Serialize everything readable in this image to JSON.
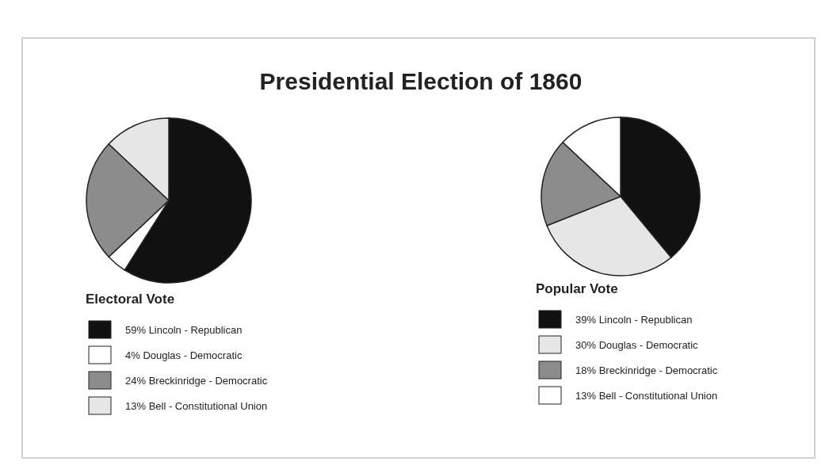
{
  "chart_data": [
    {
      "type": "pie",
      "title": "Presidential Election of 1860",
      "legend_title": "Electoral Vote",
      "legend": "bottom",
      "categories": [
        "59% Lincoln - Republican",
        "4% Douglas - Democratic",
        "24% Breckinridge - Democratic",
        "13% Bell - Constitutional Union"
      ],
      "values": [
        59,
        4,
        24,
        13
      ],
      "colors": [
        "#111111",
        "#ffffff",
        "#8c8c8c",
        "#e6e6e6"
      ]
    },
    {
      "type": "pie",
      "legend_title": "Popular Vote",
      "legend": "bottom",
      "categories": [
        "39% Lincoln - Republican",
        "30% Douglas - Democratic",
        "18% Breckinridge - Democratic",
        "13% Bell - Constitutional Union"
      ],
      "values": [
        39,
        30,
        18,
        13
      ],
      "colors": [
        "#111111",
        "#e6e6e6",
        "#8c8c8c",
        "#ffffff"
      ]
    }
  ]
}
